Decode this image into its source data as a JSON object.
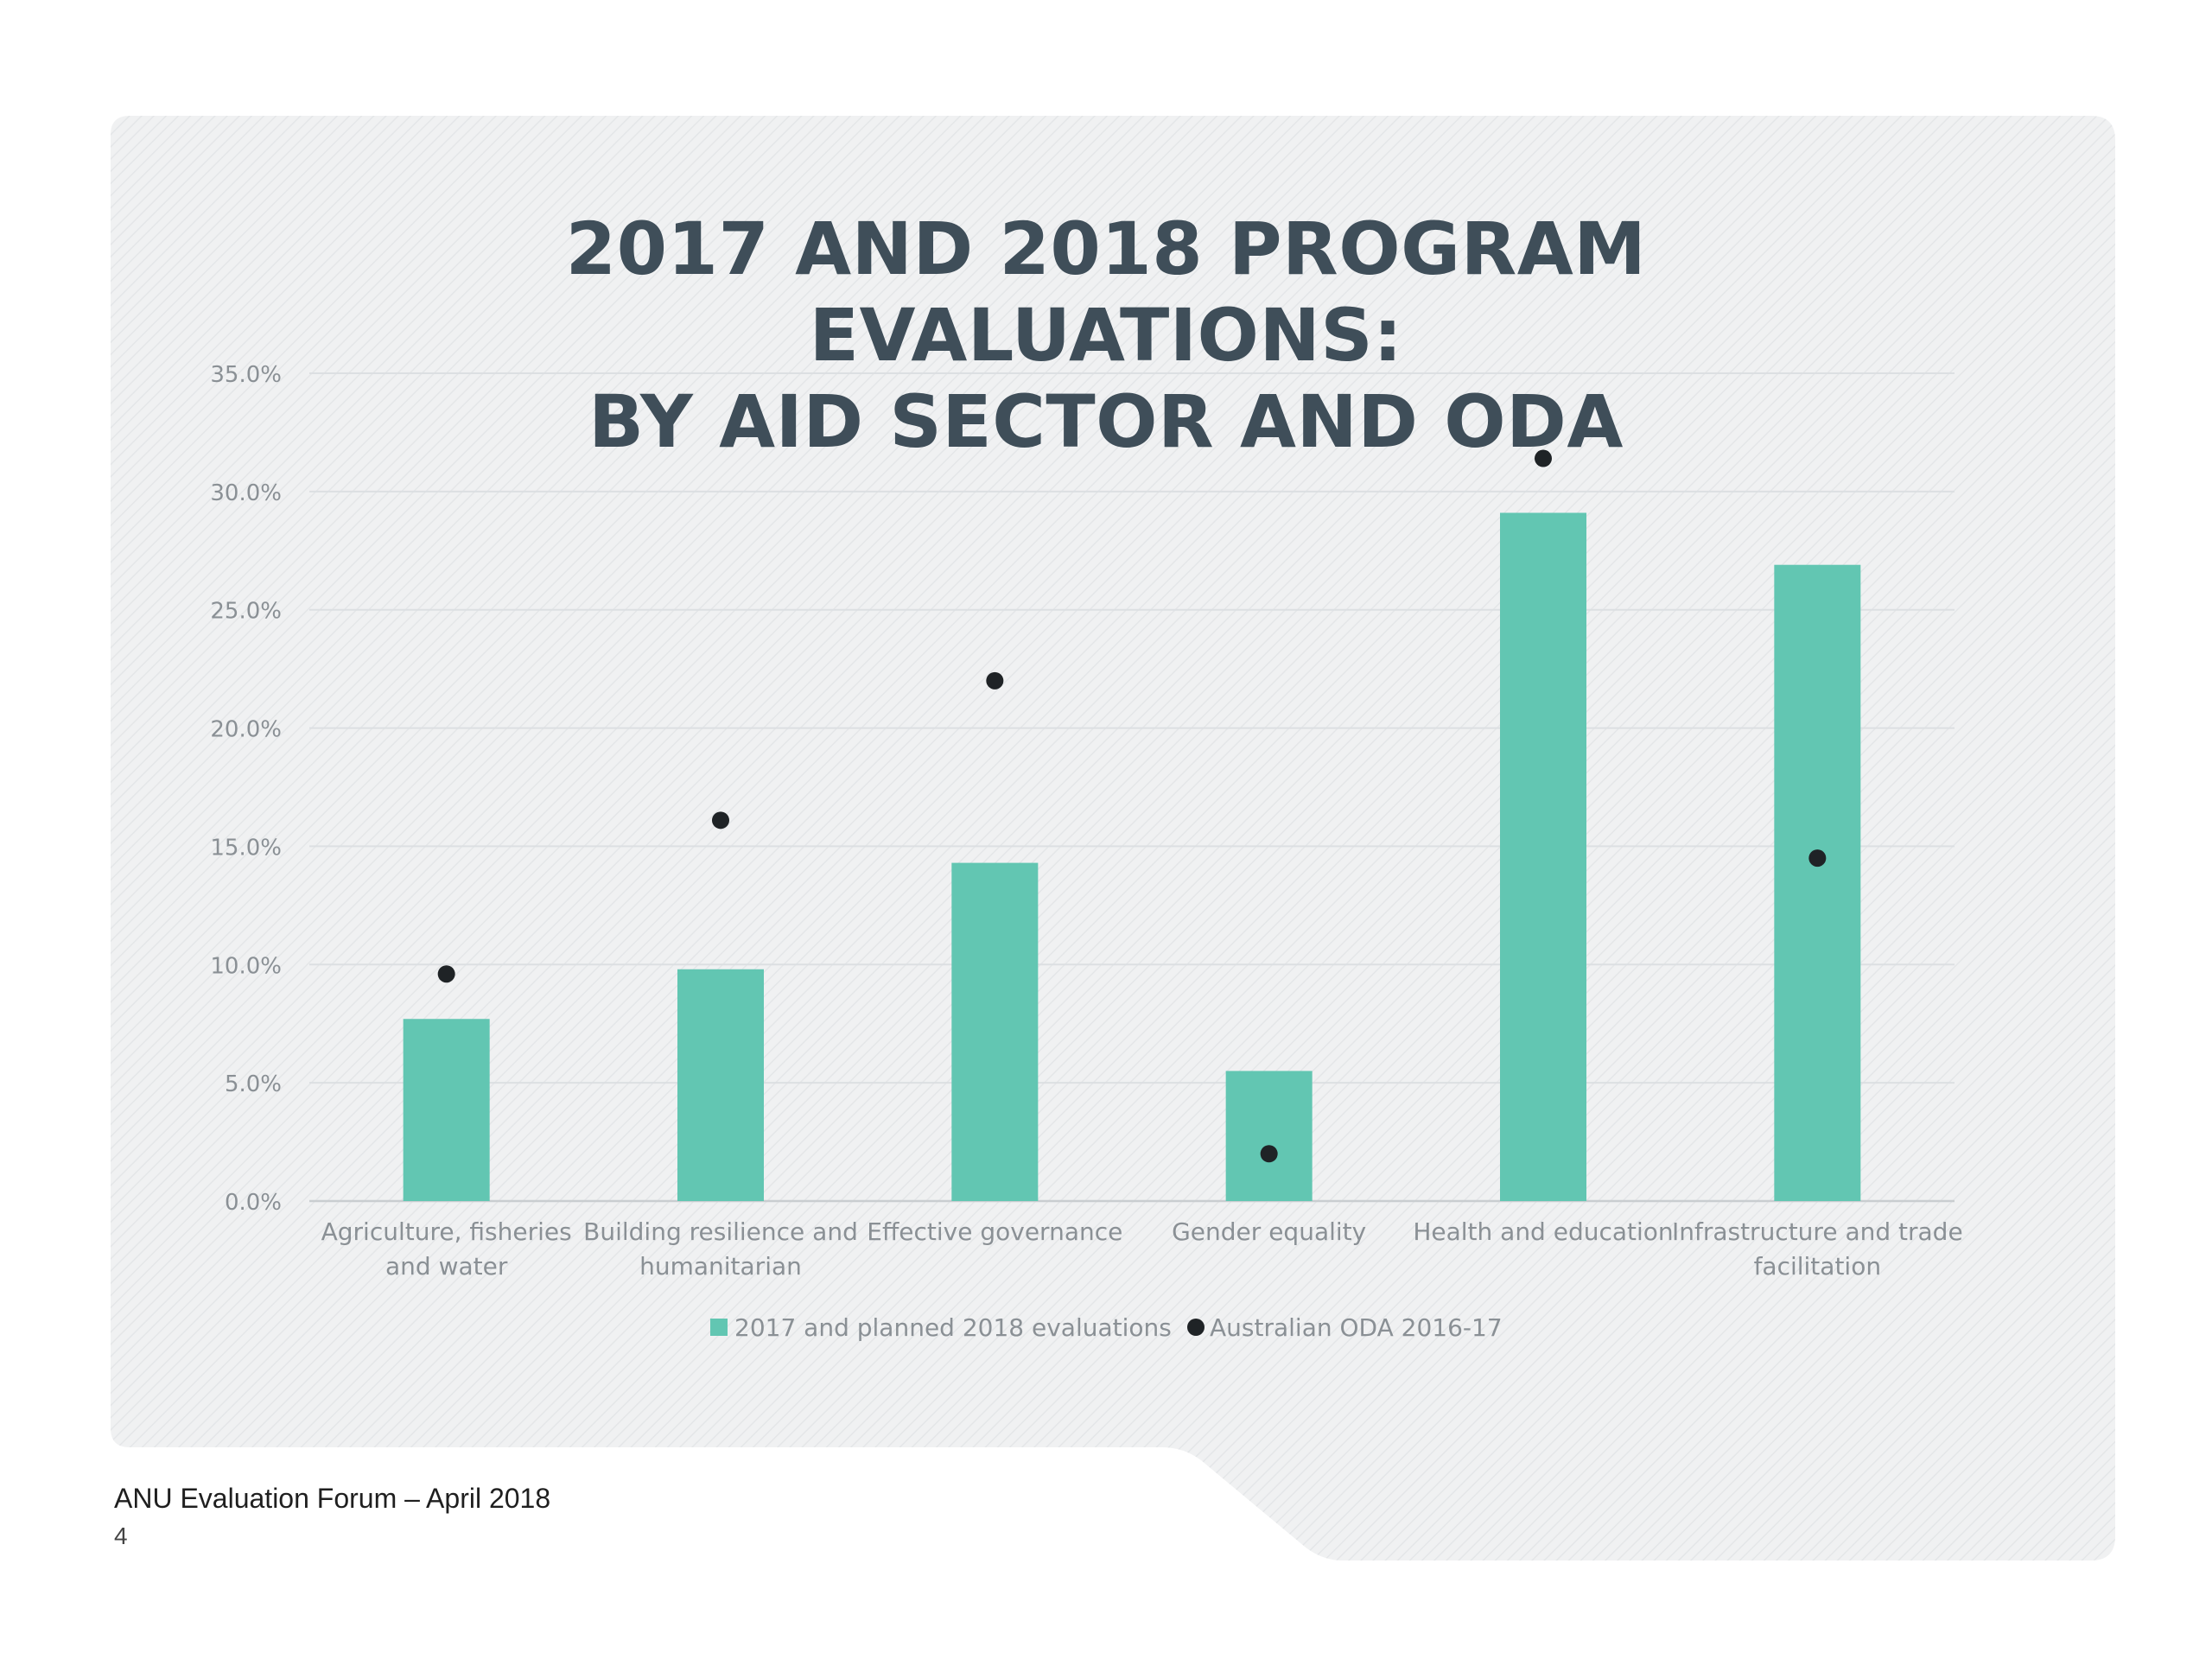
{
  "chart_data": {
    "type": "bar",
    "title": [
      "2017 AND 2018 PROGRAM EVALUATIONS:",
      "BY AID SECTOR AND ODA"
    ],
    "categories": [
      [
        "Agriculture, fisheries",
        "and water"
      ],
      [
        "Building resilience and",
        "humanitarian"
      ],
      [
        "Effective governance"
      ],
      [
        "Gender equality"
      ],
      [
        "Health and education"
      ],
      [
        "Infrastructure and trade",
        "facilitation"
      ]
    ],
    "series": [
      {
        "name": "2017 and planned 2018 evaluations",
        "kind": "bar",
        "color": "#62c6b2",
        "values": [
          7.7,
          9.8,
          14.3,
          5.5,
          29.1,
          26.9
        ]
      },
      {
        "name": "Australian ODA 2016-17",
        "kind": "dot",
        "color": "#1f2326",
        "values": [
          9.6,
          16.1,
          22.0,
          2.0,
          31.4,
          14.5
        ]
      }
    ],
    "ylim": [
      0,
      35
    ],
    "yticks": [
      "0.0%",
      "5.0%",
      "10.0%",
      "15.0%",
      "20.0%",
      "25.0%",
      "30.0%",
      "35.0%"
    ],
    "ytick_values": [
      0,
      5,
      10,
      15,
      20,
      25,
      30,
      35
    ],
    "grid": true,
    "legend_position": "bottom"
  },
  "footer": {
    "event": "ANU Evaluation Forum – April 2018",
    "page_number": "4"
  }
}
